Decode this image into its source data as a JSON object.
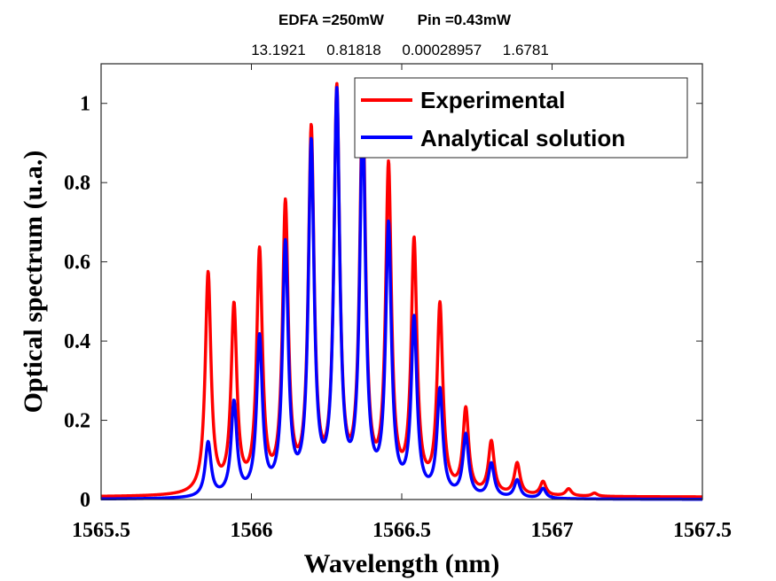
{
  "chart_data": {
    "type": "line",
    "title_line1": "EDFA =250mW        Pin =0.43mW",
    "title_line2": "13.1921     0.81818     0.00028957     1.6781",
    "xlabel": "Wavelength (nm)",
    "ylabel": "Optical spectrum (u.a.)",
    "xlim": [
      1565.5,
      1567.5
    ],
    "ylim": [
      0,
      1.1
    ],
    "xticks": [
      1565.5,
      1566,
      1566.5,
      1567,
      1567.5
    ],
    "xtick_labels": [
      "1565.5",
      "1566",
      "1566.5",
      "1567",
      "1567.5"
    ],
    "yticks": [
      0,
      0.2,
      0.4,
      0.6,
      0.8,
      1
    ],
    "ytick_labels": [
      "0",
      "0.2",
      "0.4",
      "0.6",
      "0.8",
      "1"
    ],
    "legend_position": "top-right",
    "line_spacing_nm": 0.0856,
    "series": [
      {
        "name": "Experimental",
        "color": "#ff0000",
        "peaks_x": [
          1565.856,
          1565.942,
          1566.027,
          1566.113,
          1566.199,
          1566.284,
          1566.37,
          1566.456,
          1566.541,
          1566.627,
          1566.713,
          1566.798,
          1566.884,
          1566.97,
          1567.055,
          1567.141
        ],
        "peaks_y": [
          0.555,
          0.465,
          0.6,
          0.715,
          0.9,
          1.0,
          0.99,
          0.81,
          0.625,
          0.47,
          0.21,
          0.132,
          0.08,
          0.035,
          0.018,
          0.008
        ],
        "baseline": 0.006
      },
      {
        "name": "Analytical solution",
        "color": "#0000ff",
        "peaks_x": [
          1565.856,
          1565.942,
          1566.027,
          1566.113,
          1566.199,
          1566.284,
          1566.37,
          1566.456,
          1566.541,
          1566.627,
          1566.713,
          1566.798,
          1566.884,
          1566.97
        ],
        "peaks_y": [
          0.137,
          0.235,
          0.395,
          0.625,
          0.875,
          1.0,
          0.94,
          0.67,
          0.44,
          0.265,
          0.155,
          0.085,
          0.045,
          0.025
        ],
        "baseline": 0.0
      }
    ]
  }
}
